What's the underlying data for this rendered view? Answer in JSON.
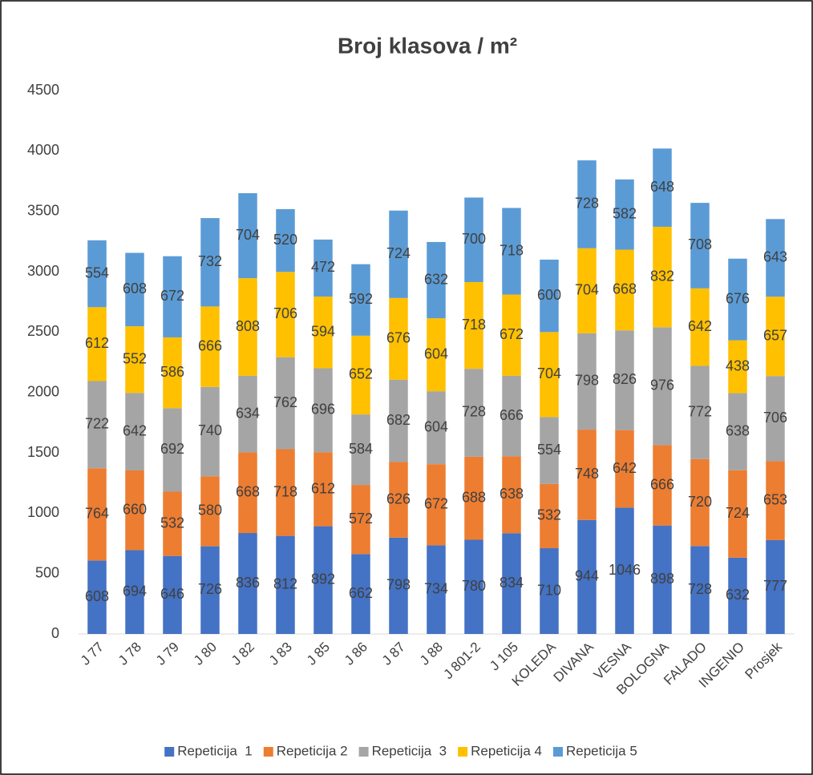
{
  "chart_data": {
    "type": "stacked-bar",
    "title": "Broj klasova / m²",
    "categories": [
      "J 77",
      "J 78",
      "J 79",
      "J 80",
      "J 82",
      "J 83",
      "J 85",
      "J 86",
      "J 87",
      "J 88",
      "J 801-2",
      "J 105",
      "KOLEDA",
      "DIVANA",
      "VESNA",
      "BOLOGNA",
      "FALADO",
      "INGENIO",
      "Prosjek"
    ],
    "series": [
      {
        "name": "Repeticija  1",
        "color": "#4472c4",
        "values": [
          608,
          694,
          646,
          726,
          836,
          812,
          892,
          662,
          798,
          734,
          780,
          834,
          710,
          944,
          1046,
          898,
          728,
          632,
          777
        ]
      },
      {
        "name": "Repeticija 2",
        "color": "#ed7d31",
        "values": [
          764,
          660,
          532,
          580,
          668,
          718,
          612,
          572,
          626,
          672,
          688,
          638,
          532,
          748,
          642,
          666,
          720,
          724,
          653
        ]
      },
      {
        "name": "Repeticija  3",
        "color": "#a5a5a5",
        "values": [
          722,
          642,
          692,
          740,
          634,
          762,
          696,
          584,
          682,
          604,
          728,
          666,
          554,
          798,
          826,
          976,
          772,
          638,
          706
        ]
      },
      {
        "name": "Repeticija 4",
        "color": "#ffc000",
        "values": [
          612,
          552,
          586,
          666,
          808,
          706,
          594,
          652,
          676,
          604,
          718,
          672,
          704,
          704,
          668,
          832,
          642,
          438,
          657
        ]
      },
      {
        "name": "Repeticija 5",
        "color": "#5b9bd5",
        "values": [
          554,
          608,
          672,
          732,
          704,
          520,
          472,
          592,
          724,
          632,
          700,
          718,
          600,
          728,
          582,
          648,
          708,
          676,
          643
        ]
      }
    ],
    "ylim": [
      0,
      4500
    ],
    "yticks": [
      0,
      500,
      1000,
      1500,
      2000,
      2500,
      3000,
      3500,
      4000,
      4500
    ],
    "grid": false,
    "legend": "bottom"
  }
}
